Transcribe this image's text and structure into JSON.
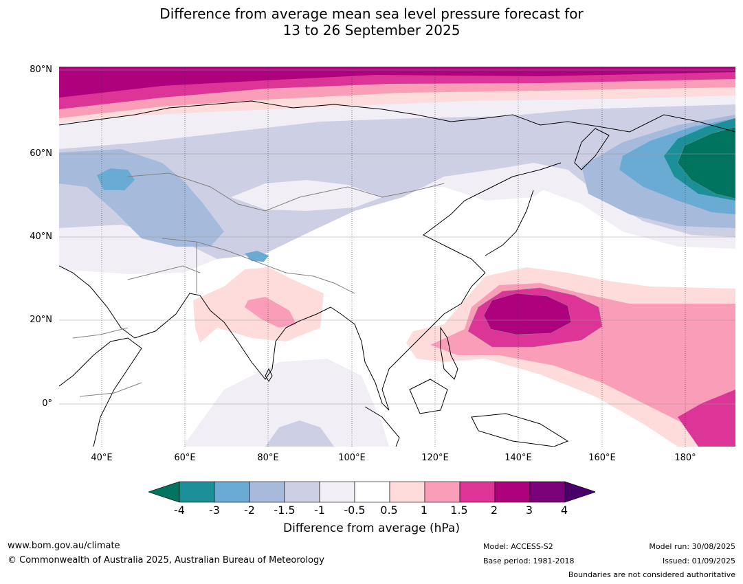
{
  "title": {
    "line1": "Difference from average mean sea level pressure forecast for",
    "line2": "13 to 26 September 2025"
  },
  "axes": {
    "lat_labels": [
      "80°N",
      "60°N",
      "40°N",
      "20°N",
      "0°"
    ],
    "lon_labels": [
      "40°E",
      "60°E",
      "80°E",
      "100°E",
      "120°E",
      "140°E",
      "160°E",
      "180°"
    ],
    "lon_range": [
      30,
      192
    ],
    "lat_range": [
      -10,
      80
    ]
  },
  "colorbar": {
    "title": "Difference from average (hPa)",
    "tick_labels": [
      "-4",
      "-3",
      "-2",
      "-1.5",
      "-1",
      "-0.5",
      "0.5",
      "1",
      "1.5",
      "2",
      "3",
      "4"
    ],
    "colors": [
      "#00745f",
      "#1b9098",
      "#6aabd3",
      "#a6badb",
      "#cdcfe5",
      "#f2eef6",
      "#ffffff",
      "#fedcdc",
      "#f99db8",
      "#dd3497",
      "#ae017e",
      "#7a0177",
      "#49006a"
    ]
  },
  "footer": {
    "website": "www.bom.gov.au/climate",
    "copyright": "© Commonwealth of Australia 2025, Australian Bureau of Meteorology",
    "model": "Model: ACCESS-S2",
    "base_period": "Base period: 1981-2018",
    "model_run": "Model run: 30/08/2025",
    "issued": "Issued: 01/09/2025",
    "disclaimer": "Boundaries are not considered authoritative"
  }
}
